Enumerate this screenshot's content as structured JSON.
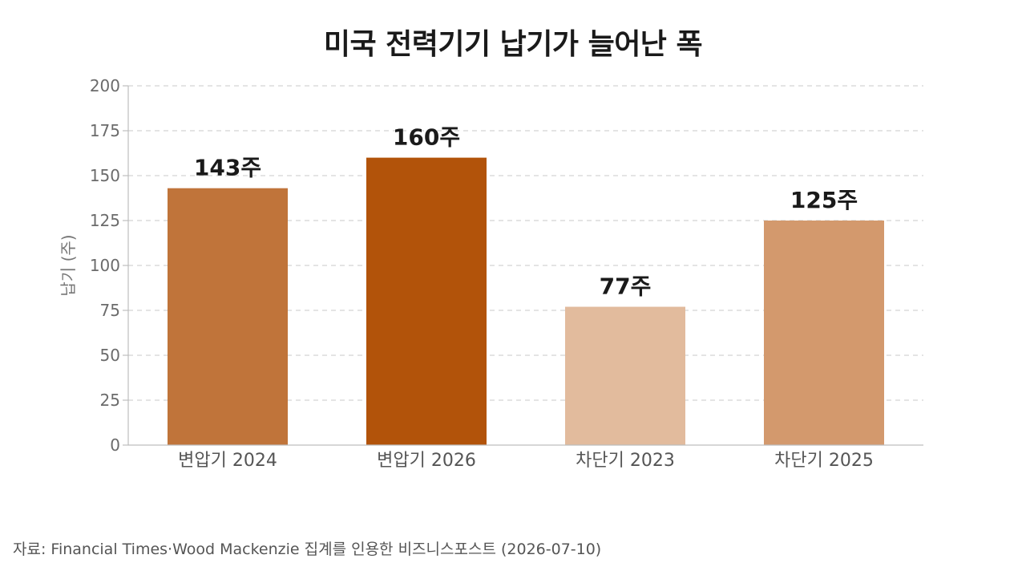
{
  "chart_data": {
    "type": "bar",
    "title": "미국 전력기기 납기가 늘어난 폭",
    "ylabel": "납기 (주)",
    "xlabel": "",
    "categories": [
      "변압기 2024",
      "변압기 2026",
      "차단기 2023",
      "차단기 2025"
    ],
    "values": [
      143,
      160,
      77,
      125
    ],
    "data_labels": [
      "143주",
      "160주",
      "77주",
      "125주"
    ],
    "bar_colors": [
      "#c0743a",
      "#b2530a",
      "#e2bb9d",
      "#d3996d"
    ],
    "ylim": [
      0,
      200
    ],
    "yticks": [
      0,
      25,
      50,
      75,
      100,
      125,
      150,
      175,
      200
    ],
    "grid": true,
    "legend": "none"
  },
  "source": "자료: Financial Times·Wood Mackenzie 집계를 인용한 비즈니스포스트 (2026-07-10)"
}
